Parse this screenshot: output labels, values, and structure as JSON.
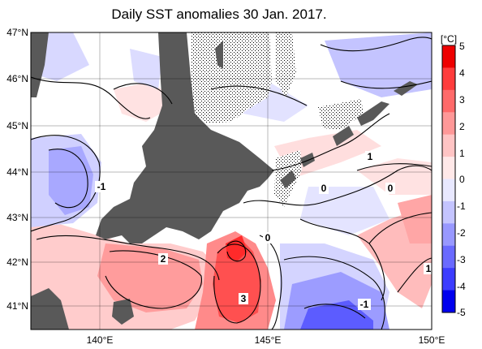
{
  "title": "Daily SST anomalies 30 Jan. 2017.",
  "map": {
    "lat_labels": [
      "47°N",
      "46°N",
      "45°N",
      "44°N",
      "43°N",
      "42°N",
      "41°N"
    ],
    "lon_labels": [
      "140°E",
      "145°E",
      "150°E"
    ],
    "contour_labels": [
      "-1",
      "0",
      "1",
      "0",
      "0",
      "2",
      "3",
      "-1",
      "1"
    ]
  },
  "colorbar": {
    "unit": "[°C]",
    "ticks": [
      "5",
      "4",
      "3",
      "2",
      "1",
      "0",
      "-1",
      "-2",
      "-3",
      "-4",
      "-5"
    ],
    "colors": [
      "#0000ee",
      "#3c3cff",
      "#6a6aff",
      "#9898ff",
      "#c4c4ff",
      "#e8e8ff",
      "#ffe8e8",
      "#ffc4c4",
      "#ff9898",
      "#ff6a6a",
      "#ff3c3c",
      "#ee0000"
    ]
  },
  "colors": {
    "land": "#595959",
    "warm": "#ff4040",
    "cool": "#4a4aff",
    "contour": "#000000"
  }
}
